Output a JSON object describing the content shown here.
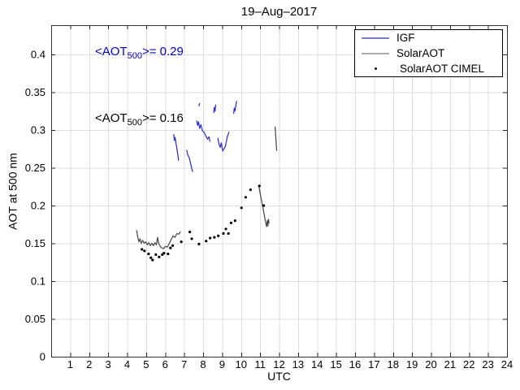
{
  "title": "19–Aug–2017",
  "axes": {
    "xlabel": "UTC",
    "ylabel": "AOT at 500 nm",
    "xlim": [
      0,
      24
    ],
    "ylim": [
      0,
      0.4387
    ],
    "xticks": [
      1,
      2,
      3,
      4,
      5,
      6,
      7,
      8,
      9,
      10,
      11,
      12,
      13,
      14,
      15,
      16,
      17,
      18,
      19,
      20,
      21,
      22,
      23,
      24
    ],
    "yticks": [
      0,
      0.05,
      0.1,
      0.15,
      0.2,
      0.25,
      0.3,
      0.35,
      0.4
    ],
    "grid": true,
    "grid_color": "#dcdcdc",
    "frame_color": "#333333"
  },
  "annotations": [
    {
      "prefix": "<AOT",
      "sub": "500",
      "suffix": ">= 0.29",
      "color": "#0000e0"
    },
    {
      "prefix": "<AOT",
      "sub": "500",
      "suffix": ">= 0.16",
      "color": "#000000"
    }
  ],
  "legend": {
    "position": "top-right",
    "items": [
      {
        "label": "IGF",
        "marker": "line",
        "color": "#7b7bdf"
      },
      {
        "label": "SolarAOT",
        "marker": "line",
        "color": "#ababab"
      },
      {
        "label": "SolarAOT CIMEL",
        "marker": "dot",
        "color": "#000000"
      }
    ]
  },
  "chart_data": {
    "type": "line",
    "title": "19–Aug–2017",
    "xlabel": "UTC",
    "ylabel": "AOT at 500 nm",
    "xlim": [
      0,
      24
    ],
    "ylim": [
      0,
      0.4387
    ],
    "legend_position": "top-right",
    "mean_aot500": {
      "IGF": 0.29,
      "SolarAOT": 0.16
    },
    "series": [
      {
        "name": "IGF",
        "type": "line",
        "color": "#2d2dd4",
        "fragments": [
          [
            [
              6.45,
              0.294
            ],
            [
              6.49,
              0.286
            ],
            [
              6.53,
              0.29
            ],
            [
              6.58,
              0.281
            ],
            [
              6.63,
              0.274
            ],
            [
              6.68,
              0.265
            ],
            [
              6.71,
              0.26
            ]
          ],
          [
            [
              7.14,
              0.273
            ],
            [
              7.19,
              0.267
            ],
            [
              7.26,
              0.264
            ],
            [
              7.33,
              0.257
            ],
            [
              7.4,
              0.249
            ],
            [
              7.45,
              0.245
            ]
          ],
          [
            [
              7.78,
              0.332
            ],
            [
              7.81,
              0.335
            ]
          ],
          [
            [
              7.66,
              0.312
            ],
            [
              7.71,
              0.306
            ],
            [
              7.76,
              0.311
            ],
            [
              7.82,
              0.302
            ],
            [
              7.88,
              0.307
            ],
            [
              7.96,
              0.299
            ],
            [
              8.05,
              0.297
            ],
            [
              8.14,
              0.292
            ],
            [
              8.23,
              0.288
            ],
            [
              8.31,
              0.291
            ],
            [
              8.36,
              0.285
            ]
          ],
          [
            [
              8.56,
              0.323
            ],
            [
              8.59,
              0.33
            ],
            [
              8.63,
              0.325
            ],
            [
              8.66,
              0.333
            ]
          ],
          [
            [
              8.78,
              0.289
            ],
            [
              8.84,
              0.281
            ],
            [
              8.9,
              0.277
            ],
            [
              8.96,
              0.283
            ],
            [
              9.03,
              0.272
            ],
            [
              9.1,
              0.275
            ],
            [
              9.18,
              0.279
            ],
            [
              9.27,
              0.291
            ],
            [
              9.36,
              0.297
            ]
          ],
          [
            [
              9.61,
              0.322
            ],
            [
              9.64,
              0.329
            ],
            [
              9.68,
              0.325
            ],
            [
              9.72,
              0.332
            ],
            [
              9.76,
              0.338
            ]
          ]
        ]
      },
      {
        "name": "SolarAOT",
        "type": "line",
        "color": "#4a4a4a",
        "fragments": [
          [
            [
              4.5,
              0.167
            ],
            [
              4.56,
              0.158
            ],
            [
              4.62,
              0.152
            ],
            [
              4.68,
              0.156
            ],
            [
              4.74,
              0.15
            ],
            [
              4.82,
              0.154
            ],
            [
              4.9,
              0.15
            ],
            [
              4.98,
              0.152
            ],
            [
              5.06,
              0.148
            ],
            [
              5.14,
              0.151
            ],
            [
              5.22,
              0.147
            ],
            [
              5.3,
              0.15
            ],
            [
              5.38,
              0.147
            ],
            [
              5.46,
              0.151
            ],
            [
              5.54,
              0.148
            ],
            [
              5.6,
              0.158
            ],
            [
              5.66,
              0.15
            ],
            [
              5.74,
              0.146
            ],
            [
              5.82,
              0.144
            ],
            [
              5.92,
              0.143
            ],
            [
              6.02,
              0.146
            ],
            [
              6.12,
              0.145
            ],
            [
              6.22,
              0.15
            ],
            [
              6.32,
              0.155
            ],
            [
              6.42,
              0.16
            ],
            [
              6.52,
              0.158
            ],
            [
              6.62,
              0.163
            ],
            [
              6.72,
              0.162
            ],
            [
              6.8,
              0.165
            ]
          ],
          [
            [
              10.94,
              0.225
            ],
            [
              11.0,
              0.217
            ],
            [
              11.06,
              0.209
            ],
            [
              11.12,
              0.201
            ],
            [
              11.18,
              0.193
            ],
            [
              11.24,
              0.185
            ],
            [
              11.3,
              0.177
            ],
            [
              11.34,
              0.172
            ],
            [
              11.38,
              0.18
            ],
            [
              11.41,
              0.173
            ],
            [
              11.44,
              0.182
            ],
            [
              11.47,
              0.177
            ]
          ],
          [
            [
              11.79,
              0.304
            ],
            [
              11.81,
              0.296
            ],
            [
              11.83,
              0.289
            ],
            [
              11.85,
              0.281
            ],
            [
              11.87,
              0.273
            ]
          ]
        ]
      },
      {
        "name": "SolarAOT CIMEL",
        "type": "scatter",
        "color": "#000000",
        "points": [
          [
            4.78,
            0.142
          ],
          [
            4.91,
            0.14
          ],
          [
            5.13,
            0.136
          ],
          [
            5.25,
            0.131
          ],
          [
            5.34,
            0.128
          ],
          [
            5.51,
            0.135
          ],
          [
            5.68,
            0.132
          ],
          [
            5.85,
            0.135
          ],
          [
            5.94,
            0.137
          ],
          [
            6.15,
            0.136
          ],
          [
            6.28,
            0.144
          ],
          [
            6.4,
            0.147
          ],
          [
            6.85,
            0.152
          ],
          [
            7.3,
            0.165
          ],
          [
            7.4,
            0.156
          ],
          [
            7.78,
            0.149
          ],
          [
            8.16,
            0.153
          ],
          [
            8.37,
            0.157
          ],
          [
            8.59,
            0.158
          ],
          [
            8.8,
            0.16
          ],
          [
            9.07,
            0.163
          ],
          [
            9.2,
            0.169
          ],
          [
            9.33,
            0.163
          ],
          [
            9.47,
            0.177
          ],
          [
            9.68,
            0.18
          ],
          [
            10.02,
            0.197
          ],
          [
            10.24,
            0.211
          ],
          [
            10.5,
            0.221
          ],
          [
            10.96,
            0.226
          ],
          [
            11.19,
            0.2
          ]
        ]
      }
    ]
  }
}
